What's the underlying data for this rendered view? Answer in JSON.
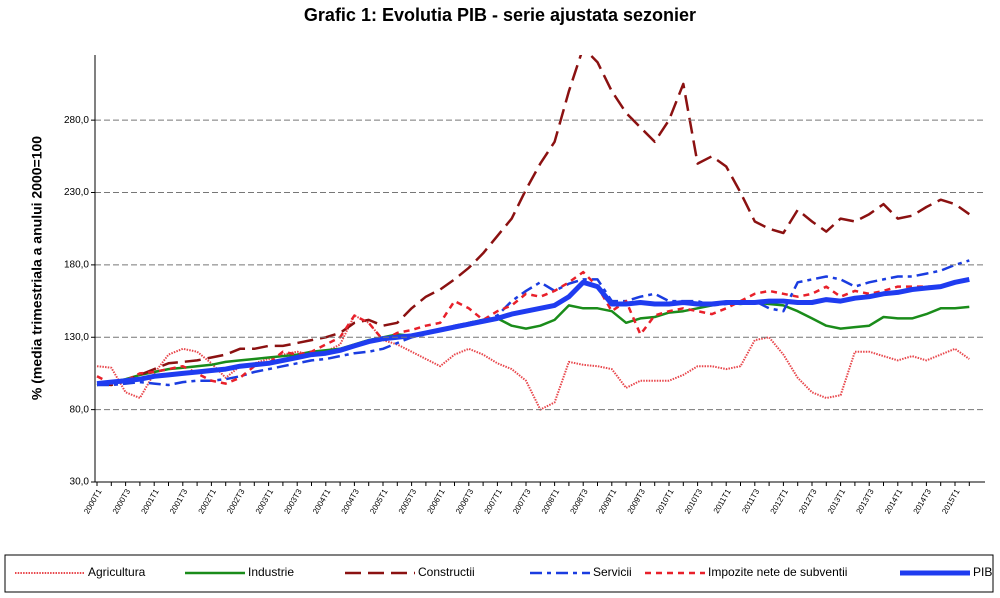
{
  "chart_data": {
    "type": "line",
    "title": "Grafic 1: Evolutia PIB - serie ajustata sezonier",
    "y_label": "% (media trimestriala a anului 2000=100",
    "categories": [
      "2000T1",
      null,
      "2000T3",
      null,
      "2001T1",
      null,
      "2001T3",
      null,
      "2002T1",
      null,
      "2002T3",
      null,
      "2003T1",
      null,
      "2003T3",
      null,
      "2004T1",
      null,
      "2004T3",
      null,
      "2005T1",
      null,
      "2005T3",
      null,
      "2006T1",
      null,
      "2006T3",
      null,
      "2007T1",
      null,
      "2007T3",
      null,
      "2008T1",
      null,
      "2008T3",
      null,
      "2009T1",
      null,
      "2009T3",
      null,
      "2010T1",
      null,
      "2010T3",
      null,
      "2011T1",
      null,
      "2011T3",
      null,
      "2012T1",
      null,
      "2012T3",
      null,
      "2013T1",
      null,
      "2013T3",
      null,
      "2014T1",
      null,
      "2014T3",
      null,
      "2015T1",
      null
    ],
    "series": [
      {
        "name": "Agricultura",
        "color": "#e8474c",
        "values": [
          110,
          109,
          92,
          88,
          105,
          118,
          122,
          120,
          112,
          102,
          110,
          112,
          115,
          118,
          120,
          118,
          120,
          125,
          145,
          140,
          128,
          125,
          120,
          115,
          110,
          118,
          122,
          118,
          112,
          108,
          100,
          80,
          85,
          113,
          111,
          110,
          108,
          95,
          100,
          100,
          100,
          104,
          110,
          110,
          108,
          110,
          128,
          130,
          118,
          102,
          92,
          88,
          90,
          120,
          120,
          117,
          114,
          117,
          114,
          118,
          122,
          115
        ]
      },
      {
        "name": "Industrie",
        "color": "#1a8c1a",
        "values": [
          97,
          99,
          101,
          104,
          106,
          108,
          109,
          110,
          111,
          113,
          114,
          115,
          116,
          117,
          118,
          120,
          121,
          122,
          125,
          128,
          130,
          132,
          131,
          133,
          135,
          137,
          140,
          142,
          143,
          138,
          136,
          138,
          142,
          152,
          150,
          150,
          148,
          140,
          143,
          144,
          147,
          148,
          150,
          152,
          154,
          153,
          154,
          153,
          152,
          148,
          143,
          138,
          136,
          137,
          138,
          144,
          143,
          143,
          146,
          150,
          150,
          151
        ]
      },
      {
        "name": "Constructii",
        "color": "#8b1111",
        "values": [
          98,
          97,
          100,
          104,
          108,
          112,
          113,
          114,
          116,
          118,
          122,
          122,
          124,
          124,
          126,
          128,
          130,
          133,
          140,
          142,
          138,
          140,
          150,
          158,
          163,
          170,
          178,
          188,
          200,
          212,
          232,
          250,
          265,
          300,
          330,
          320,
          300,
          285,
          275,
          265,
          280,
          305,
          250,
          255,
          248,
          230,
          210,
          205,
          202,
          218,
          210,
          203,
          212,
          210,
          215,
          222,
          212,
          214,
          220,
          225,
          222,
          215
        ]
      },
      {
        "name": "Servicii",
        "color": "#1a3ce0",
        "values": [
          97,
          97,
          98,
          99,
          98,
          97,
          99,
          100,
          100,
          101,
          103,
          106,
          108,
          110,
          112,
          114,
          115,
          117,
          119,
          120,
          122,
          126,
          130,
          132,
          135,
          138,
          140,
          142,
          145,
          155,
          162,
          168,
          162,
          167,
          170,
          170,
          155,
          155,
          158,
          160,
          155,
          155,
          155,
          152,
          153,
          154,
          155,
          150,
          148,
          168,
          170,
          172,
          170,
          165,
          168,
          170,
          172,
          172,
          174,
          176,
          180,
          183
        ]
      },
      {
        "name": "Impozite nete de subventii",
        "color": "#e8202a",
        "values": [
          103,
          98,
          100,
          105,
          106,
          108,
          110,
          105,
          100,
          98,
          102,
          110,
          112,
          120,
          118,
          120,
          125,
          130,
          145,
          140,
          128,
          133,
          135,
          138,
          140,
          155,
          150,
          142,
          148,
          152,
          160,
          158,
          162,
          168,
          175,
          165,
          148,
          155,
          132,
          145,
          148,
          150,
          148,
          146,
          150,
          155,
          160,
          162,
          160,
          158,
          160,
          165,
          158,
          162,
          160,
          162,
          165,
          165,
          165,
          165,
          168,
          170
        ]
      },
      {
        "name": "PIB",
        "color": "#1f3cf0",
        "values": [
          98,
          99,
          100,
          101,
          103,
          104,
          105,
          106,
          107,
          108,
          110,
          111,
          112,
          114,
          116,
          118,
          119,
          121,
          124,
          127,
          129,
          130,
          131,
          133,
          135,
          137,
          139,
          141,
          143,
          146,
          148,
          150,
          152,
          158,
          168,
          165,
          153,
          153,
          154,
          153,
          153,
          154,
          153,
          153,
          154,
          154,
          154,
          155,
          155,
          154,
          154,
          156,
          155,
          157,
          158,
          160,
          161,
          163,
          164,
          165,
          168,
          170
        ]
      }
    ],
    "ylim": [
      30,
      325
    ],
    "yticks": [
      {
        "value": 30,
        "label": "30,0"
      },
      {
        "value": 80,
        "label": "80,0"
      },
      {
        "value": 130,
        "label": "130,0"
      },
      {
        "value": 180,
        "label": "180,0"
      },
      {
        "value": 230,
        "label": "230,0"
      },
      {
        "value": 280,
        "label": "280,0"
      }
    ],
    "grid": true,
    "legend": "bottom"
  }
}
